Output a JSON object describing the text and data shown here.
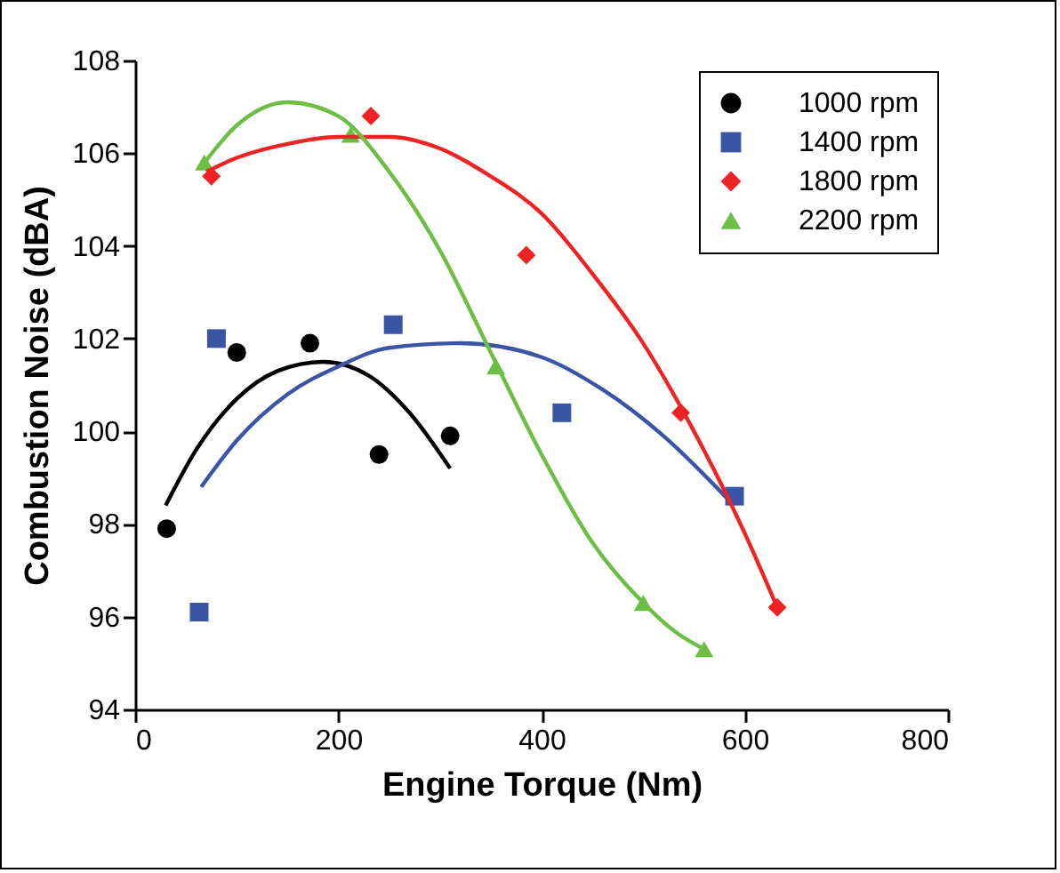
{
  "chart_data": {
    "type": "scatter",
    "xlabel": "Engine Torque (Nm)",
    "ylabel": "Combustion Noise (dBA)",
    "xlim": [
      0,
      800
    ],
    "xticks": [
      0,
      200,
      400,
      600,
      800
    ],
    "ylim": [
      94,
      108
    ],
    "yticks": [
      94,
      96,
      98,
      100,
      102,
      104,
      106,
      108
    ],
    "grid": false,
    "legend": "top right",
    "series": [
      {
        "name": "1000 rpm",
        "color": "#000000",
        "marker": "circle",
        "x": [
          31,
          100,
          172,
          240,
          310
        ],
        "values": [
          97.9,
          101.7,
          101.9,
          99.5,
          99.9
        ]
      },
      {
        "name": "1400 rpm",
        "color": "#3a55a4",
        "marker": "square",
        "x": [
          63,
          80,
          254,
          420,
          590
        ],
        "values": [
          96.1,
          102.0,
          102.3,
          100.4,
          98.6
        ]
      },
      {
        "name": "1800 rpm",
        "color": "#ee2324",
        "marker": "diamond",
        "x": [
          75,
          232,
          385,
          537,
          632
        ],
        "values": [
          105.5,
          106.8,
          103.8,
          100.4,
          96.2
        ]
      },
      {
        "name": "2200 rpm",
        "color": "#6cbe45",
        "marker": "triangle",
        "x": [
          68,
          212,
          355,
          500,
          560
        ],
        "values": [
          105.8,
          106.4,
          101.4,
          96.3,
          95.3
        ]
      },
      {
        "type": "line",
        "color": "#000000",
        "marker": "none",
        "x": [
          30,
          60,
          100,
          140,
          185,
          230,
          270,
          310
        ],
        "values": [
          98.4,
          99.6,
          100.7,
          101.3,
          101.5,
          101.2,
          100.4,
          99.2
        ]
      },
      {
        "type": "line",
        "color": "#3a55a4",
        "marker": "none",
        "x": [
          65,
          100,
          150,
          200,
          250,
          320,
          400,
          460,
          520,
          585
        ],
        "values": [
          98.8,
          99.8,
          100.8,
          101.4,
          101.8,
          101.9,
          101.6,
          100.9,
          99.9,
          98.5
        ]
      },
      {
        "type": "line",
        "color": "#ee2324",
        "marker": "none",
        "x": [
          70,
          100,
          150,
          200,
          250,
          300,
          350,
          400,
          450,
          500,
          550,
          600,
          632
        ],
        "values": [
          105.6,
          105.9,
          106.2,
          106.35,
          106.35,
          106.1,
          105.5,
          104.7,
          103.4,
          101.9,
          100.0,
          97.8,
          96.2
        ]
      },
      {
        "type": "line",
        "color": "#6cbe45",
        "marker": "none",
        "x": [
          65,
          100,
          150,
          200,
          250,
          300,
          350,
          400,
          450,
          500,
          530,
          560
        ],
        "values": [
          105.7,
          106.6,
          107.1,
          106.8,
          105.6,
          103.9,
          101.7,
          99.5,
          97.6,
          96.3,
          95.7,
          95.3
        ]
      }
    ]
  }
}
